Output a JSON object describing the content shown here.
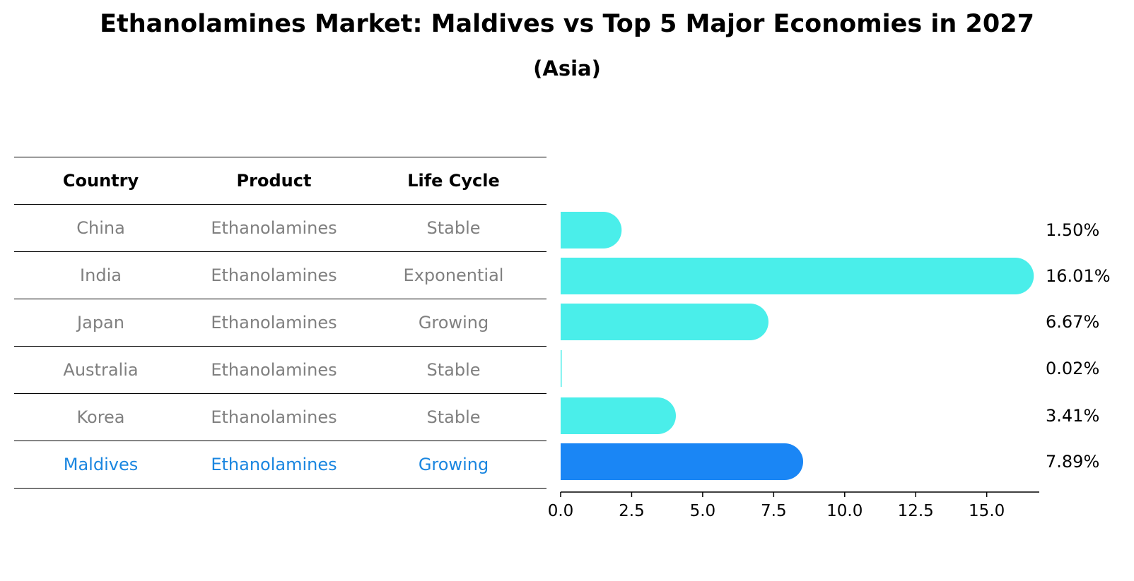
{
  "header": {
    "title": "Ethanolamines Market: Maldives vs Top 5 Major Economies in 2027",
    "subtitle": "(Asia)"
  },
  "table": {
    "columns": [
      "Country",
      "Product",
      "Life Cycle"
    ],
    "rows": [
      {
        "country": "China",
        "product": "Ethanolamines",
        "life_cycle": "Stable"
      },
      {
        "country": "India",
        "product": "Ethanolamines",
        "life_cycle": "Exponential"
      },
      {
        "country": "Japan",
        "product": "Ethanolamines",
        "life_cycle": "Growing"
      },
      {
        "country": "Australia",
        "product": "Ethanolamines",
        "life_cycle": "Stable"
      },
      {
        "country": "Korea",
        "product": "Ethanolamines",
        "life_cycle": "Stable"
      },
      {
        "country": "Maldives",
        "product": "Ethanolamines",
        "life_cycle": "Growing"
      }
    ],
    "highlight_color": "#1a86e0",
    "text_color": "#808080"
  },
  "chart_data": {
    "type": "bar",
    "orientation": "horizontal",
    "categories": [
      "China",
      "India",
      "Japan",
      "Australia",
      "Korea",
      "Maldives"
    ],
    "values": [
      1.5,
      16.01,
      6.67,
      0.02,
      3.41,
      7.89
    ],
    "value_labels": [
      "1.50%",
      "16.01%",
      "6.67%",
      "0.02%",
      "3.41%",
      "7.89%"
    ],
    "highlight": "Maldives",
    "xlim": [
      0,
      16.85
    ],
    "xticks": [
      0.0,
      2.5,
      5.0,
      7.5,
      10.0,
      12.5,
      15.0
    ],
    "xtick_labels": [
      "0.0",
      "2.5",
      "5.0",
      "7.5",
      "10.0",
      "12.5",
      "15.0"
    ],
    "colors": {
      "default": "#4aeeea",
      "highlight": "#1a86f5"
    },
    "grid": false
  }
}
